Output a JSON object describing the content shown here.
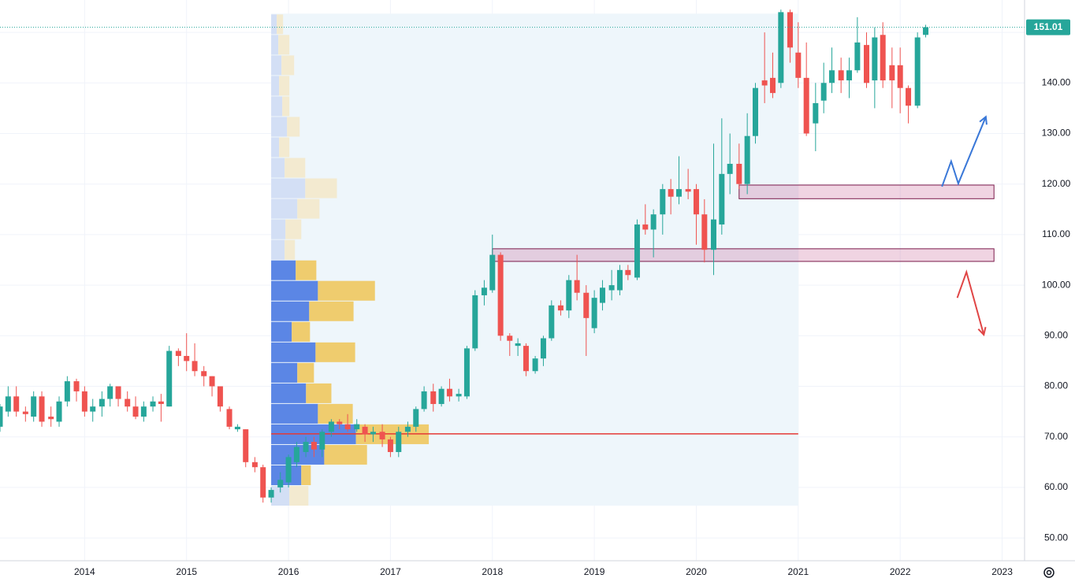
{
  "chart_data": {
    "type": "candlestick",
    "x": [
      2013.17,
      2013.25,
      2013.33,
      2013.42,
      2013.5,
      2013.58,
      2013.67,
      2013.75,
      2013.83,
      2013.92,
      2014,
      2014.08,
      2014.17,
      2014.25,
      2014.33,
      2014.42,
      2014.5,
      2014.58,
      2014.67,
      2014.75,
      2014.83,
      2014.92,
      2015,
      2015.08,
      2015.17,
      2015.25,
      2015.33,
      2015.42,
      2015.5,
      2015.58,
      2015.67,
      2015.75,
      2015.83,
      2015.92,
      2016,
      2016.08,
      2016.17,
      2016.25,
      2016.33,
      2016.42,
      2016.5,
      2016.58,
      2016.67,
      2016.75,
      2016.83,
      2016.92,
      2017,
      2017.08,
      2017.17,
      2017.25,
      2017.33,
      2017.42,
      2017.5,
      2017.58,
      2017.67,
      2017.75,
      2017.83,
      2017.92,
      2018,
      2018.08,
      2018.17,
      2018.25,
      2018.33,
      2018.42,
      2018.5,
      2018.58,
      2018.67,
      2018.75,
      2018.83,
      2018.92,
      2019,
      2019.08,
      2019.17,
      2019.25,
      2019.33,
      2019.42,
      2019.5,
      2019.58,
      2019.67,
      2019.75,
      2019.83,
      2019.92,
      2020,
      2020.08,
      2020.17,
      2020.25,
      2020.33,
      2020.42,
      2020.5,
      2020.58,
      2020.67,
      2020.75,
      2020.83,
      2020.92,
      2021,
      2021.08,
      2021.17,
      2021.25,
      2021.33,
      2021.42,
      2021.5,
      2021.58,
      2021.67,
      2021.75,
      2021.83,
      2021.92,
      2022,
      2022.08,
      2022.17,
      2022.25
    ],
    "open": [
      72,
      75,
      78,
      75,
      74,
      78,
      74,
      73,
      77,
      81,
      79,
      75,
      76,
      77.5,
      80,
      77.5,
      76,
      74,
      76,
      77,
      76,
      87,
      86,
      85,
      83,
      82,
      80,
      75.5,
      71.5,
      71.5,
      65,
      64,
      58,
      60,
      61,
      65,
      67,
      69,
      67.5,
      71,
      73,
      72.5,
      71.5,
      72,
      70.5,
      71,
      69.5,
      67,
      71,
      72,
      75.5,
      79,
      76.5,
      79.5,
      78,
      78,
      87.5,
      98,
      99,
      106,
      90,
      88,
      88,
      83,
      85.5,
      89.5,
      96,
      95,
      101,
      98.5,
      91.5,
      96.5,
      99,
      99,
      103,
      101.5,
      112,
      111,
      114,
      119,
      117.5,
      119,
      119,
      114,
      107,
      112,
      122,
      124,
      120,
      129.5,
      140.5,
      141,
      140,
      154,
      146,
      141,
      132,
      136.5,
      140,
      142.5,
      140.5,
      142.5,
      147.5,
      140.5,
      149.5,
      143.5,
      143.5,
      139,
      135.5,
      149.5
    ],
    "high": [
      76.5,
      80,
      80,
      76,
      79,
      79,
      76,
      78,
      82,
      81.5,
      80,
      77.5,
      79,
      80.5,
      80,
      79,
      78,
      77,
      78,
      78.5,
      88,
      87.5,
      90.5,
      88.5,
      84,
      82,
      80,
      76,
      72.5,
      71.5,
      66,
      64.5,
      60,
      63,
      66.5,
      69,
      70,
      70,
      71.5,
      73.5,
      73.5,
      74.5,
      73.5,
      72.5,
      72,
      72.5,
      70,
      72,
      73,
      76,
      80,
      80.5,
      80,
      81.5,
      79.5,
      88,
      99,
      101,
      110,
      106.5,
      90.5,
      89.5,
      88.5,
      86,
      90,
      97,
      97,
      102,
      106,
      100,
      99,
      101,
      103,
      104,
      104,
      113,
      116,
      115,
      120,
      121,
      125.5,
      123,
      120,
      117,
      128,
      133,
      130,
      128,
      134,
      140,
      150,
      146,
      154.5,
      154.5,
      152,
      148,
      140,
      144,
      147,
      145,
      145,
      153,
      150,
      151,
      152,
      147,
      147,
      139.5,
      150,
      151.5
    ],
    "low": [
      71,
      74,
      74,
      73,
      73,
      72,
      72,
      72,
      76,
      77,
      74,
      73,
      74,
      76,
      76,
      75,
      73.5,
      73,
      75,
      73,
      76,
      84,
      83,
      82,
      80,
      78,
      75,
      71.5,
      71,
      64,
      63,
      57,
      57,
      59,
      60,
      64,
      66,
      66,
      66,
      70,
      71.5,
      71,
      71,
      69,
      69,
      68,
      66,
      66,
      70,
      71,
      75,
      75,
      76,
      77,
      77,
      77.5,
      87,
      96,
      98.5,
      89,
      86,
      86,
      82,
      82.5,
      84,
      89,
      94,
      93.5,
      97,
      86,
      90.5,
      95,
      97,
      98,
      101,
      101,
      110,
      105.5,
      110,
      114,
      116,
      117,
      108,
      104.5,
      102,
      110,
      118,
      119,
      118,
      128,
      136,
      137,
      139,
      144,
      139,
      129.5,
      126.5,
      134,
      138,
      138,
      137,
      142,
      139,
      135,
      139,
      135,
      134,
      132,
      135,
      149
    ],
    "close": [
      76,
      78,
      75,
      74.5,
      78,
      73,
      73.5,
      77,
      81,
      79,
      75,
      76,
      77.5,
      80,
      77.5,
      76,
      74,
      76,
      77,
      76.5,
      87,
      86,
      85,
      83,
      82,
      80,
      76,
      72,
      72,
      65,
      64,
      58,
      59.5,
      61.5,
      66,
      68,
      69,
      67.5,
      71,
      73,
      72.5,
      71.5,
      72.5,
      70.5,
      71,
      69.5,
      67,
      71,
      72,
      75.5,
      79,
      76.5,
      79.5,
      78,
      78.5,
      87.5,
      98,
      99.5,
      106,
      90,
      89,
      88.5,
      83,
      85.5,
      89.5,
      96,
      95,
      101,
      98.5,
      93.5,
      97.5,
      99.5,
      100,
      103,
      102,
      112,
      111,
      114,
      119,
      117.5,
      119,
      118.5,
      114,
      107,
      113,
      122,
      124,
      120,
      129.5,
      139,
      139.5,
      138,
      154,
      147,
      141,
      130,
      136,
      140,
      142.5,
      140.5,
      142.5,
      148,
      140,
      149,
      140.5,
      140.5,
      139,
      135.5,
      149,
      151.01
    ],
    "up_color": "#26a69a",
    "down_color": "#ef5350",
    "xlim": [
      2013.17,
      2023.22
    ],
    "xticks": [
      2014,
      2015,
      2016,
      2017,
      2018,
      2019,
      2020,
      2021,
      2022,
      2023
    ],
    "ylim": [
      45.5,
      156.4
    ],
    "yticks": [
      {
        "value": 50,
        "label": "50.00"
      },
      {
        "value": 60,
        "label": "60.00"
      },
      {
        "value": 70,
        "label": "70.00"
      },
      {
        "value": 80,
        "label": "80.00"
      },
      {
        "value": 90,
        "label": "90.00"
      },
      {
        "value": 100,
        "label": "100.00"
      },
      {
        "value": 110,
        "label": "110.00"
      },
      {
        "value": 120,
        "label": "120.00"
      },
      {
        "value": 130,
        "label": "130.00"
      },
      {
        "value": 140,
        "label": "140.00"
      },
      {
        "value": 150,
        "label": "150.00"
      }
    ],
    "grid": true,
    "volume_profile": {
      "x": [
        2015.83,
        2021.0
      ],
      "bins": [
        56.4,
        60.45,
        64.51,
        68.56,
        72.62,
        76.67,
        80.72,
        84.78,
        88.83,
        92.89,
        96.94,
        101.0,
        105.05,
        109.1,
        113.16,
        117.21,
        121.27,
        125.32,
        129.38,
        133.43,
        137.48,
        141.54,
        145.59,
        149.65,
        153.7
      ],
      "up": [
        23,
        38,
        67,
        107,
        59,
        44,
        33,
        56,
        26,
        48,
        59,
        31,
        17,
        18,
        33,
        43,
        17,
        10,
        20,
        14,
        10,
        13,
        9,
        7
      ],
      "down": [
        24,
        12,
        54,
        92,
        44,
        32,
        21,
        50,
        23,
        56,
        72,
        26,
        13,
        20,
        28,
        40,
        26,
        13,
        16,
        9,
        13,
        16,
        14,
        8
      ],
      "value_area": [
        60.45,
        105.05
      ],
      "poc": 70.6,
      "up_color": "#5b86e5",
      "down_color": "#efcc6e",
      "up_pale": "#d3dff5",
      "down_pale": "#f3ead0",
      "poc_color": "#e53935",
      "range_color": "#eef6fb"
    },
    "zones": [
      {
        "x": [
          2020.42,
          2022.92
        ],
        "y": [
          117.1,
          119.8
        ]
      },
      {
        "x": [
          2018.0,
          2022.92
        ],
        "y": [
          104.7,
          107.2
        ]
      }
    ],
    "drawings": [
      {
        "color": "#3a78d8",
        "x": [
          2022.41,
          2022.5,
          2022.57,
          2022.84
        ],
        "y": [
          119.5,
          124.5,
          120.1,
          133.3
        ]
      },
      {
        "color": "#e04545",
        "x": [
          2022.56,
          2022.65,
          2022.82
        ],
        "y": [
          97.5,
          102.6,
          90.2
        ]
      }
    ]
  }
}
